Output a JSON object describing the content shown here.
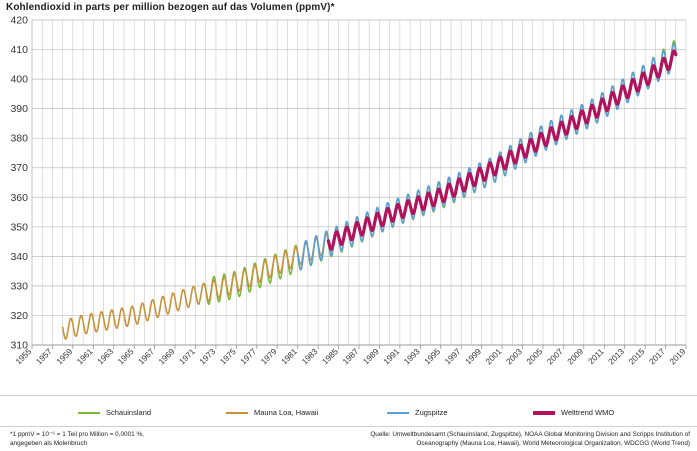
{
  "title": "Kohlendioxid in parts per million bezogen auf das Volumen (ppmV)*",
  "legend": [
    {
      "label": "Schauinsland",
      "color": "#7cba3c"
    },
    {
      "label": "Mauna Loa, Hawaii",
      "color": "#c9923a"
    },
    {
      "label": "Zugspitze",
      "color": "#5b9fd6"
    },
    {
      "label": "Welttrend WMO",
      "color": "#b0125b"
    }
  ],
  "footnote": {
    "line1": "*1 ppmV = 10⁻⁶ = 1 Teil pro Million = 0,0001 %,",
    "line2": "angegeben als Molenbruch"
  },
  "source": {
    "line1": "Quelle: Umweltbundesamt (Schauinsland, Zugspitze), NOAA Global Monitoring Division and Scripps Institution of",
    "line2": "Oceanography  (Mauna Loa, Hawaii), World Meteorological Organization, WDCGG (World Trend)"
  },
  "chart_data": {
    "type": "line",
    "title": "Kohlendioxid in parts per million bezogen auf das Volumen (ppmV)*",
    "xlabel": "",
    "ylabel": "",
    "xlim": [
      1955,
      2019
    ],
    "ylim": [
      310,
      420
    ],
    "yticks": [
      310,
      320,
      330,
      340,
      350,
      360,
      370,
      380,
      390,
      400,
      410,
      420
    ],
    "xticks": [
      "1955",
      "1957",
      "1959",
      "1961",
      "1963",
      "1965",
      "1967",
      "1969",
      "1971",
      "1973",
      "1975",
      "1977",
      "1979",
      "1981",
      "1983",
      "1985",
      "1987",
      "1989",
      "1991",
      "1993",
      "1995",
      "1997",
      "1999",
      "2001",
      "2003",
      "2005",
      "2007",
      "2009",
      "2011",
      "2013",
      "2015",
      "2017",
      "2019"
    ],
    "grid": true,
    "series": [
      {
        "name": "Schauinsland",
        "color": "#7cba3c",
        "width": 1.6,
        "seasonal_amplitude_ppmV": 9,
        "x": [
          1972,
          1975,
          1980,
          1985,
          1990,
          1995,
          2000,
          2005,
          2010,
          2015,
          2018
        ],
        "y": [
          328,
          330.5,
          338,
          345.5,
          354,
          360.5,
          369,
          380,
          389,
          400.5,
          409
        ]
      },
      {
        "name": "Mauna Loa, Hawaii",
        "color": "#c9923a",
        "width": 1.6,
        "seasonal_amplitude_ppmV": 6.5,
        "x": [
          1958,
          1960,
          1965,
          1970,
          1975,
          1980,
          1985
        ],
        "y": [
          315,
          316.9,
          320,
          325.7,
          331,
          338.7,
          346
        ]
      },
      {
        "name": "Zugspitze",
        "color": "#5b9fd6",
        "width": 1.6,
        "seasonal_amplitude_ppmV": 9,
        "x": [
          1981,
          1985,
          1990,
          1995,
          2000,
          2005,
          2010,
          2015,
          2018
        ],
        "y": [
          339.5,
          346,
          354,
          361,
          369,
          380,
          389,
          400.5,
          408
        ]
      },
      {
        "name": "Welttrend WMO",
        "color": "#b0125b",
        "width": 3.2,
        "seasonal_amplitude_ppmV": 5,
        "x": [
          1984,
          1990,
          1995,
          2000,
          2005,
          2010,
          2015,
          2018
        ],
        "y": [
          344.5,
          354,
          360.5,
          369.5,
          379.5,
          389,
          400,
          407.5
        ]
      }
    ]
  }
}
